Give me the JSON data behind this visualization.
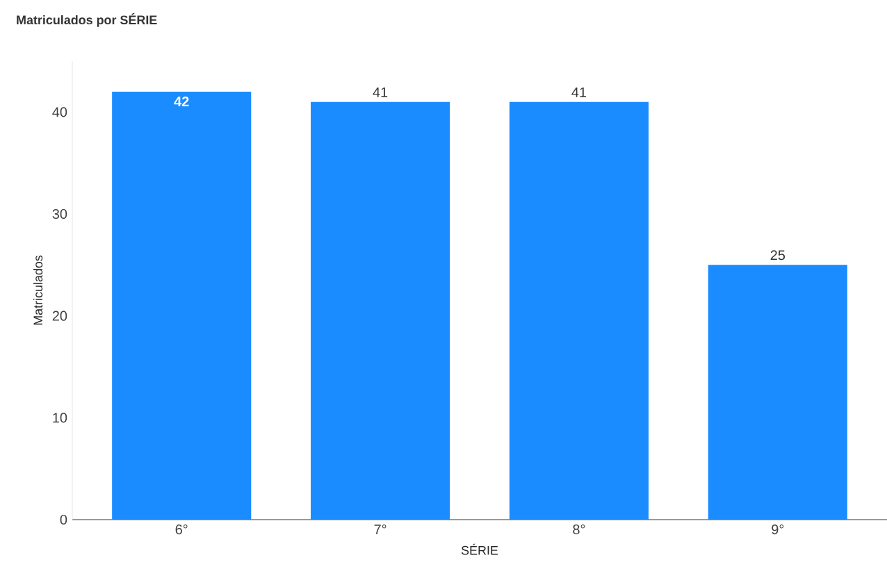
{
  "chart_data": {
    "type": "bar",
    "title": "Matriculados por SÉRIE",
    "xlabel": "SÉRIE",
    "ylabel": "Matriculados",
    "categories": [
      "6°",
      "7°",
      "8°",
      "9°"
    ],
    "values": [
      42,
      41,
      41,
      25
    ],
    "color": "#1a8cff",
    "ylim": [
      0,
      45
    ],
    "yticks": [
      0,
      10,
      20,
      30,
      40
    ],
    "data_labels": true
  }
}
